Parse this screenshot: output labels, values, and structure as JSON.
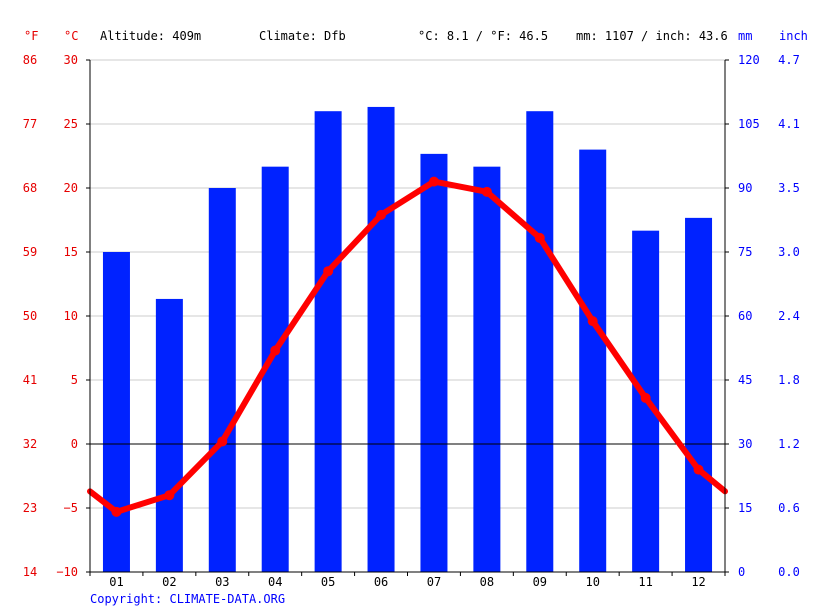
{
  "header": {
    "unit_f": "°F",
    "unit_c": "°C",
    "altitude": "Altitude: 409m",
    "climate": "Climate: Dfb",
    "avg_temp": "°C: 8.1 / °F: 46.5",
    "precip_total": "mm: 1107 / inch: 43.6",
    "unit_mm": "mm",
    "unit_inch": "inch"
  },
  "footer": {
    "copyright": "Copyright: CLIMATE-DATA.ORG"
  },
  "colors": {
    "temperature": "#ff0000",
    "precipitation": "#0022ff",
    "axis_red": "#e60000",
    "axis_blue": "#0000ff",
    "zero_line": "#000000",
    "grid": "#cccccc"
  },
  "chart_data": {
    "type": "bar+line",
    "categories": [
      "01",
      "02",
      "03",
      "04",
      "05",
      "06",
      "07",
      "08",
      "09",
      "10",
      "11",
      "12"
    ],
    "precipitation_mm": [
      75,
      64,
      90,
      95,
      108,
      109,
      98,
      95,
      108,
      99,
      80,
      83
    ],
    "temperature_c": [
      -5.3,
      -4.0,
      0.2,
      7.3,
      13.5,
      17.9,
      20.5,
      19.7,
      16.1,
      9.6,
      3.6,
      -2.0
    ],
    "temperature_c_edges": [
      -3.7,
      -3.7
    ],
    "ylim_c": [
      -10,
      30
    ],
    "ylim_mm": [
      0,
      120
    ],
    "left_ticks_f": [
      "86",
      "77",
      "68",
      "59",
      "50",
      "41",
      "32",
      "23",
      "14"
    ],
    "left_ticks_c": [
      "30",
      "25",
      "20",
      "15",
      "10",
      "5",
      "0",
      "−5",
      "−10"
    ],
    "right_ticks_mm": [
      "120",
      "105",
      "90",
      "75",
      "60",
      "45",
      "30",
      "15",
      "0"
    ],
    "right_ticks_inch": [
      "4.7",
      "4.1",
      "3.5",
      "3.0",
      "2.4",
      "1.8",
      "1.2",
      "0.6",
      "0.0"
    ],
    "grid": true
  }
}
